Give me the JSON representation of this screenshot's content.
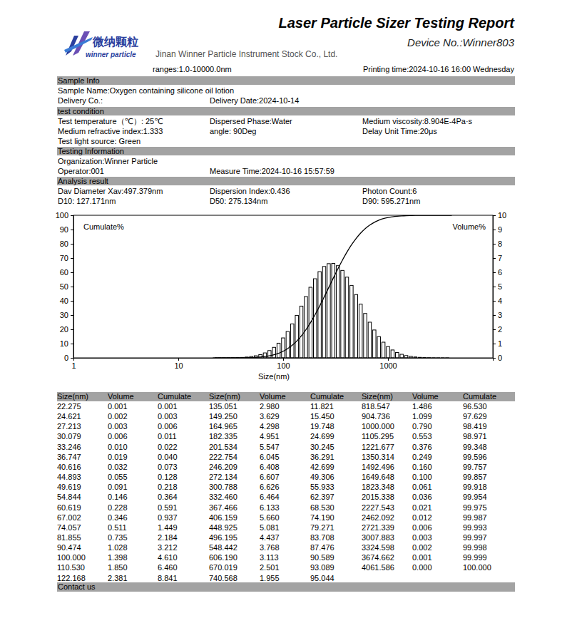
{
  "header": {
    "title": "Laser Particle Sizer Testing Report",
    "device": "Device No.:Winner803",
    "logo_cn": "微纳颗粒",
    "logo_en": "winner particle",
    "company": "Jinan Winner Particle Instrument Stock Co., Ltd.",
    "ranges": "ranges:1.0-10000.0nm",
    "printing_time": "Printing time:2024-10-16 16:00 Wednesday"
  },
  "sections": [
    {
      "title": "Sample Info",
      "rows": [
        [
          "Sample Name:Oxygen containing silicone oil lotion"
        ],
        [
          "Delivery Co.:",
          "Delivery Date:2024-10-14"
        ]
      ]
    },
    {
      "title": "test condition",
      "rows": [
        [
          "Test temperature（℃）: 25℃",
          "Dispersed Phase:Water",
          "Medium viscosity:8.904E-4Pa·s"
        ],
        [
          "Medium refractive index:1.333",
          "angle:  90Deg",
          "Delay Unit Time:20μs"
        ],
        [
          "Test light source:  Green"
        ]
      ]
    },
    {
      "title": "Testing Information",
      "rows": [
        [
          "Organization:Winner Particle"
        ],
        [
          "Operator:001",
          "Measure Time:2024-10-16 15:57:59"
        ]
      ]
    },
    {
      "title": "Analysis result",
      "rows": [
        [
          "Dav Diameter Xav:497.379nm",
          "Dispersion Index:0.436",
          "Photon Count:6"
        ],
        [
          "D10: 127.171nm",
          "D50: 275.134nm",
          "D90: 595.271nm"
        ]
      ]
    }
  ],
  "chart_data": {
    "type": "bar",
    "x_label": "Size(nm)",
    "log": "x",
    "grid": false,
    "x": [
      22.275,
      24.621,
      27.213,
      30.079,
      33.246,
      36.747,
      40.616,
      44.893,
      49.619,
      54.844,
      60.619,
      67.002,
      74.057,
      81.855,
      90.474,
      100,
      110.53,
      122.168,
      135.051,
      149.25,
      164.965,
      182.335,
      201.534,
      222.754,
      246.209,
      272.134,
      300.788,
      332.46,
      367.466,
      406.159,
      448.925,
      496.195,
      548.442,
      606.19,
      670.019,
      740.568,
      818.547,
      904.736,
      1000,
      1105.295,
      1221.677,
      1350.314,
      1492.496,
      1649.648,
      1823.348,
      2015.338,
      2227.543,
      2462.092,
      2721.339,
      3007.883,
      3324.598,
      3674.662,
      4061.586
    ],
    "series": [
      {
        "name": "Volume%",
        "type": "bar",
        "axis": "y2",
        "color": "#000000",
        "values": [
          0.001,
          0.002,
          0.003,
          0.006,
          0.01,
          0.019,
          0.032,
          0.055,
          0.091,
          0.146,
          0.228,
          0.346,
          0.511,
          0.735,
          1.028,
          1.398,
          1.85,
          2.381,
          2.98,
          3.629,
          4.298,
          4.951,
          5.547,
          6.045,
          6.408,
          6.607,
          6.626,
          6.464,
          6.133,
          5.66,
          5.081,
          4.437,
          3.768,
          3.113,
          2.501,
          1.955,
          1.486,
          1.099,
          0.79,
          0.553,
          0.376,
          0.249,
          0.16,
          0.1,
          0.061,
          0.036,
          0.021,
          0.012,
          0.006,
          0.003,
          0.002,
          0.001,
          0
        ]
      },
      {
        "name": "Cumulate%",
        "type": "line",
        "color": "#000000",
        "values": [
          0.001,
          0.003,
          0.006,
          0.011,
          0.022,
          0.04,
          0.073,
          0.128,
          0.218,
          0.364,
          0.591,
          0.937,
          1.449,
          2.184,
          3.212,
          4.61,
          6.46,
          8.841,
          11.821,
          15.45,
          19.748,
          24.699,
          30.245,
          36.291,
          42.699,
          49.306,
          55.933,
          62.397,
          68.53,
          74.19,
          79.271,
          83.708,
          87.476,
          90.589,
          93.089,
          95.044,
          96.53,
          97.629,
          98.419,
          98.971,
          99.348,
          99.596,
          99.757,
          99.857,
          99.918,
          99.954,
          99.975,
          99.987,
          99.993,
          99.997,
          99.998,
          99.999,
          100
        ]
      }
    ],
    "xlim": [
      1,
      10000
    ],
    "xticks": [
      1,
      10,
      100,
      1000
    ],
    "ylim": [
      0,
      100
    ],
    "yticks": [
      0,
      10,
      20,
      30,
      40,
      50,
      60,
      70,
      80,
      90,
      100
    ],
    "y2lim": [
      0,
      10
    ],
    "y2ticks": [
      0,
      1,
      2,
      3,
      4,
      5,
      6,
      7,
      8,
      9,
      10
    ]
  },
  "table": {
    "columns": [
      "Size(nm)",
      "Volume",
      "Cumulate",
      "Size(nm)",
      "Volume",
      "Cumulate",
      "Size(nm)",
      "Volume",
      "Cumulate"
    ],
    "rows": [
      [
        "22.275",
        "0.001",
        "0.001",
        "135.051",
        "2.980",
        "11.821",
        "818.547",
        "1.486",
        "96.530"
      ],
      [
        "24.621",
        "0.002",
        "0.003",
        "149.250",
        "3.629",
        "15.450",
        "904.736",
        "1.099",
        "97.629"
      ],
      [
        "27.213",
        "0.003",
        "0.006",
        "164.965",
        "4.298",
        "19.748",
        "1000.000",
        "0.790",
        "98.419"
      ],
      [
        "30.079",
        "0.006",
        "0.011",
        "182.335",
        "4.951",
        "24.699",
        "1105.295",
        "0.553",
        "98.971"
      ],
      [
        "33.246",
        "0.010",
        "0.022",
        "201.534",
        "5.547",
        "30.245",
        "1221.677",
        "0.376",
        "99.348"
      ],
      [
        "36.747",
        "0.019",
        "0.040",
        "222.754",
        "6.045",
        "36.291",
        "1350.314",
        "0.249",
        "99.596"
      ],
      [
        "40.616",
        "0.032",
        "0.073",
        "246.209",
        "6.408",
        "42.699",
        "1492.496",
        "0.160",
        "99.757"
      ],
      [
        "44.893",
        "0.055",
        "0.128",
        "272.134",
        "6.607",
        "49.306",
        "1649.648",
        "0.100",
        "99.857"
      ],
      [
        "49.619",
        "0.091",
        "0.218",
        "300.788",
        "6.626",
        "55.933",
        "1823.348",
        "0.061",
        "99.918"
      ],
      [
        "54.844",
        "0.146",
        "0.364",
        "332.460",
        "6.464",
        "62.397",
        "2015.338",
        "0.036",
        "99.954"
      ],
      [
        "60.619",
        "0.228",
        "0.591",
        "367.466",
        "6.133",
        "68.530",
        "2227.543",
        "0.021",
        "99.975"
      ],
      [
        "67.002",
        "0.346",
        "0.937",
        "406.159",
        "5.660",
        "74.190",
        "2462.092",
        "0.012",
        "99.987"
      ],
      [
        "74.057",
        "0.511",
        "1.449",
        "448.925",
        "5.081",
        "79.271",
        "2721.339",
        "0.006",
        "99.993"
      ],
      [
        "81.855",
        "0.735",
        "2.184",
        "496.195",
        "4.437",
        "83.708",
        "3007.883",
        "0.003",
        "99.997"
      ],
      [
        "90.474",
        "1.028",
        "3.212",
        "548.442",
        "3.768",
        "87.476",
        "3324.598",
        "0.002",
        "99.998"
      ],
      [
        "100.000",
        "1.398",
        "4.610",
        "606.190",
        "3.113",
        "90.589",
        "3674.662",
        "0.001",
        "99.999"
      ],
      [
        "110.530",
        "1.850",
        "6.460",
        "670.019",
        "2.501",
        "93.089",
        "4061.586",
        "0.000",
        "100.000"
      ],
      [
        "122.168",
        "2.381",
        "8.841",
        "740.568",
        "1.955",
        "95.044"
      ]
    ]
  },
  "footer": "Contact us"
}
